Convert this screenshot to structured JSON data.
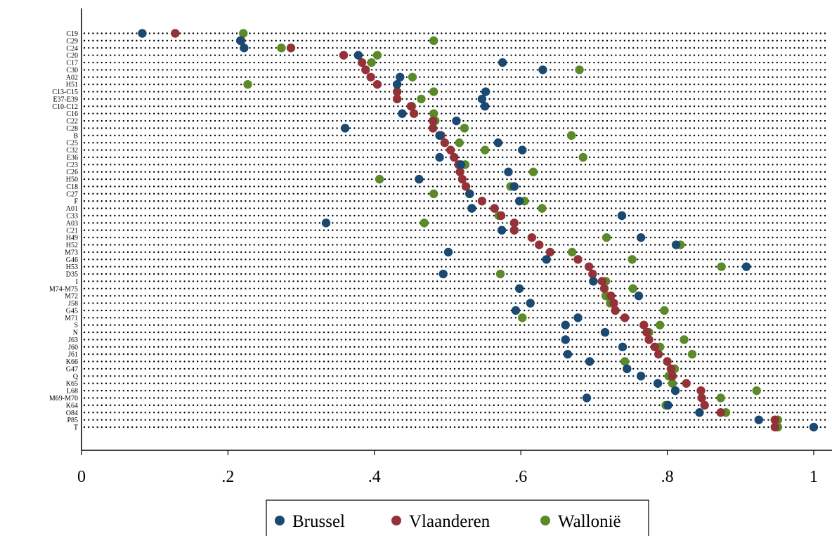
{
  "chart_data": {
    "type": "scatter",
    "xlim": [
      0,
      1
    ],
    "x_ticks": [
      {
        "value": 0,
        "label": "0"
      },
      {
        "value": 0.2,
        "label": ".2"
      },
      {
        "value": 0.4,
        "label": ".4"
      },
      {
        "value": 0.6,
        "label": ".6"
      },
      {
        "value": 0.8,
        "label": ".8"
      },
      {
        "value": 1,
        "label": "1"
      }
    ],
    "categories": [
      "C19",
      "C29",
      "C24",
      "C20",
      "C17",
      "C30",
      "A02",
      "H51",
      "C13-C15",
      "E37-E39",
      "C10-C12",
      "C16",
      "C22",
      "C28",
      "B",
      "C25",
      "C32",
      "E36",
      "C23",
      "C26",
      "H50",
      "C18",
      "C27",
      "F",
      "A01",
      "C33",
      "A03",
      "C21",
      "H49",
      "H52",
      "M73",
      "G46",
      "H53",
      "D35",
      "I",
      "M74-M75",
      "M72",
      "J58",
      "G45",
      "M71",
      "S",
      "N",
      "J63",
      "J60",
      "J61",
      "K66",
      "G47",
      "Q",
      "K65",
      "L68",
      "M69-M70",
      "K64",
      "O84",
      "P85",
      "T"
    ],
    "grid": "dotted horizontal per category",
    "legend_position": "bottom-center",
    "series": [
      {
        "name": "Brussel",
        "color": "#1a4a72",
        "values": [
          0.083,
          0.217,
          0.222,
          0.378,
          0.575,
          0.63,
          0.435,
          0.431,
          0.552,
          0.547,
          0.551,
          0.438,
          0.512,
          0.36,
          0.489,
          0.569,
          0.602,
          0.489,
          0.518,
          0.583,
          0.461,
          0.591,
          0.53,
          0.598,
          0.533,
          0.738,
          0.334,
          0.574,
          0.764,
          0.812,
          0.501,
          0.635,
          0.908,
          0.494,
          0.699,
          0.598,
          0.761,
          0.613,
          0.593,
          0.678,
          0.661,
          0.715,
          0.661,
          0.739,
          0.664,
          0.694,
          0.745,
          0.764,
          0.787,
          0.811,
          0.69,
          0.801,
          0.844,
          0.925,
          1.0
        ]
      },
      {
        "name": "Vlaanderen",
        "color": "#943237",
        "values": [
          0.128,
          0.218,
          0.286,
          0.358,
          0.383,
          0.388,
          0.395,
          0.404,
          0.431,
          0.431,
          0.45,
          0.454,
          0.48,
          0.48,
          0.491,
          0.496,
          0.504,
          0.509,
          0.515,
          0.517,
          0.52,
          0.525,
          0.53,
          0.547,
          0.564,
          0.573,
          0.591,
          0.591,
          0.615,
          0.625,
          0.64,
          0.678,
          0.693,
          0.698,
          0.711,
          0.714,
          0.723,
          0.727,
          0.729,
          0.742,
          0.768,
          0.772,
          0.775,
          0.783,
          0.788,
          0.8,
          0.805,
          0.807,
          0.826,
          0.846,
          0.847,
          0.851,
          0.873,
          0.947,
          0.947
        ]
      },
      {
        "name": "Wallonië",
        "color": "#5a8a2a",
        "values": [
          0.221,
          0.481,
          0.273,
          0.404,
          0.396,
          0.68,
          0.452,
          0.227,
          0.481,
          0.464,
          0.451,
          0.481,
          0.483,
          0.523,
          0.669,
          0.516,
          0.551,
          0.685,
          0.524,
          0.617,
          0.407,
          0.586,
          0.481,
          0.605,
          0.629,
          0.57,
          0.468,
          0.591,
          0.717,
          0.818,
          0.67,
          0.752,
          0.874,
          0.572,
          0.716,
          0.753,
          0.716,
          0.722,
          0.796,
          0.602,
          0.79,
          0.775,
          0.823,
          0.79,
          0.834,
          0.742,
          0.81,
          0.802,
          0.807,
          0.922,
          0.873,
          0.798,
          0.88,
          0.951,
          0.951
        ]
      }
    ]
  }
}
